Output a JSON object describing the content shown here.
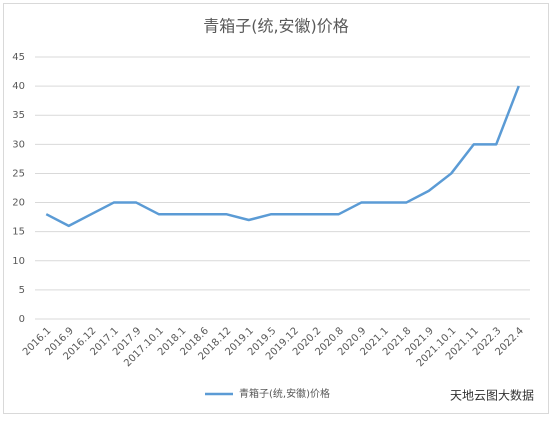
{
  "chart_data": {
    "type": "line",
    "title": "青箱子(统,安徽)价格",
    "categories": [
      "2016.1",
      "2016.9",
      "2016.12",
      "2017.1",
      "2017.9",
      "2017.10.1",
      "2018.1",
      "2018.6",
      "2018.12",
      "2019.1",
      "2019.5",
      "2019.12",
      "2020.2",
      "2020.8",
      "2020.9",
      "2021.1",
      "2021.8",
      "2021.9",
      "2021.10.1",
      "2021.11",
      "2022.3",
      "2022.4"
    ],
    "series": [
      {
        "name": "青箱子(统,安徽)价格",
        "color": "#5b9bd5",
        "values": [
          18,
          16,
          18,
          20,
          20,
          18,
          18,
          18,
          18,
          17,
          18,
          18,
          18,
          18,
          20,
          20,
          20,
          22,
          25,
          30,
          30,
          40
        ]
      }
    ],
    "ylim": [
      0,
      45
    ],
    "yticks": [
      0,
      5,
      10,
      15,
      20,
      25,
      30,
      35,
      40,
      45
    ],
    "grid": true,
    "legend": "bottom",
    "watermark": "天地云图大数据"
  }
}
